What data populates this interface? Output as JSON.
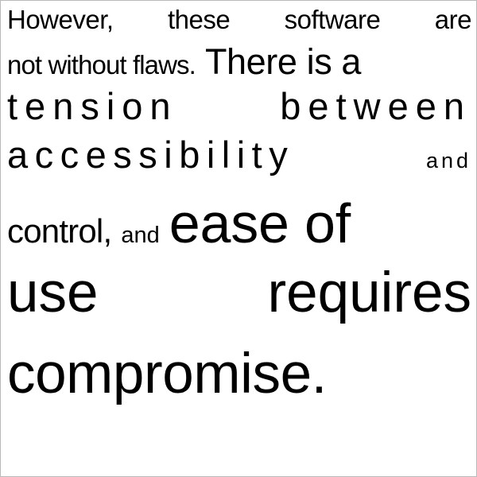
{
  "paragraph": {
    "line1": {
      "words": [
        "However,",
        "these",
        "software",
        "are"
      ]
    },
    "line2": {
      "small_text": "not without flaws.",
      "large_text": "There is a"
    },
    "line3": {
      "words": [
        "tension",
        "between"
      ]
    },
    "line4": {
      "words": [
        "accessibility",
        "and"
      ]
    },
    "line5": {
      "text_a": "control,",
      "text_b": "and",
      "text_c": "ease of"
    },
    "line6": {
      "words": [
        "use",
        "requires"
      ]
    },
    "line7": {
      "text": "compromise."
    }
  }
}
